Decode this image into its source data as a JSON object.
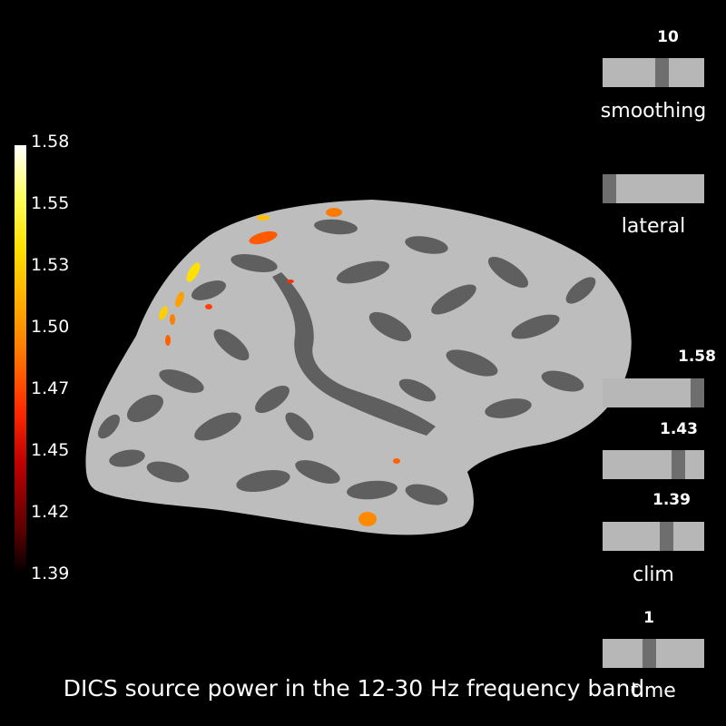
{
  "colorbar": {
    "ticks": [
      "1.58",
      "1.55",
      "1.53",
      "1.50",
      "1.47",
      "1.45",
      "1.42",
      "1.39"
    ]
  },
  "sliders": {
    "smoothing": {
      "label": "smoothing",
      "value": "10",
      "level": 0.6
    },
    "orientation": {
      "label": "lateral",
      "level": 0.0
    },
    "clim_max": {
      "value": "1.58",
      "level": 1.0
    },
    "clim_mid": {
      "value": "1.43",
      "level": 0.78
    },
    "clim_min": {
      "value": "1.39",
      "level": 0.65
    },
    "clim_label": "clim",
    "time": {
      "label": "time",
      "value": "1",
      "level": 0.45
    }
  },
  "title": "DICS source power in the 12-30 Hz frequency band",
  "colors": {
    "background": "#000000",
    "slider_track": "#b7b7b7",
    "slider_knob": "#6e6e6e"
  }
}
